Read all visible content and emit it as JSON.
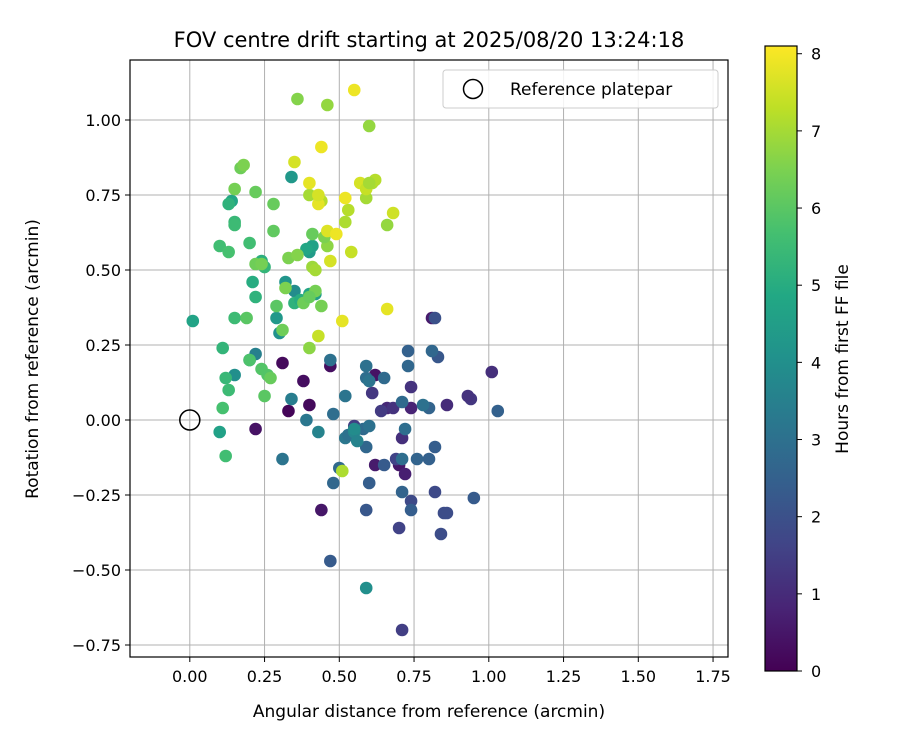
{
  "chart_data": {
    "type": "scatter",
    "title": "FOV centre drift starting at 2025/08/20 13:24:18",
    "xlabel": "Angular distance from reference (arcmin)",
    "ylabel": "Rotation from reference (arcmin)",
    "xlim": [
      -0.2,
      1.8
    ],
    "ylim": [
      -0.79,
      1.2
    ],
    "x_ticks": [
      "0.00",
      "0.25",
      "0.50",
      "0.75",
      "1.00",
      "1.25",
      "1.50",
      "1.75"
    ],
    "y_ticks": [
      "−0.75",
      "−0.50",
      "−0.25",
      "0.00",
      "0.25",
      "0.50",
      "0.75",
      "1.00"
    ],
    "grid": true,
    "legend": {
      "placement": "top-right",
      "entries": [
        "Reference platepar"
      ]
    },
    "reference_point": {
      "x": 0.0,
      "y": 0.0,
      "label": "Reference platepar"
    },
    "colorbar": {
      "label": "Hours from first FF file",
      "colormap": "viridis",
      "range": [
        0,
        8.1
      ],
      "ticks": [
        "0",
        "1",
        "2",
        "3",
        "4",
        "5",
        "6",
        "7",
        "8"
      ]
    },
    "points": [
      {
        "x": 0.31,
        "y": 0.19,
        "c": 0.2
      },
      {
        "x": 0.33,
        "y": 0.03,
        "c": 0.1
      },
      {
        "x": 0.38,
        "y": 0.13,
        "c": 0.3
      },
      {
        "x": 0.4,
        "y": 0.05,
        "c": 0.2
      },
      {
        "x": 0.22,
        "y": -0.03,
        "c": 0.4
      },
      {
        "x": 0.44,
        "y": -0.3,
        "c": 0.5
      },
      {
        "x": 0.47,
        "y": 0.18,
        "c": 0.3
      },
      {
        "x": 0.62,
        "y": 0.15,
        "c": 0.4
      },
      {
        "x": 0.62,
        "y": -0.15,
        "c": 0.6
      },
      {
        "x": 0.7,
        "y": -0.15,
        "c": 0.5
      },
      {
        "x": 0.72,
        "y": -0.18,
        "c": 0.7
      },
      {
        "x": 0.74,
        "y": 0.04,
        "c": 0.8
      },
      {
        "x": 0.81,
        "y": 0.34,
        "c": 0.6
      },
      {
        "x": 0.66,
        "y": 0.04,
        "c": 0.9
      },
      {
        "x": 0.86,
        "y": 0.05,
        "c": 1.0
      },
      {
        "x": 1.01,
        "y": 0.16,
        "c": 1.1
      },
      {
        "x": 0.94,
        "y": 0.07,
        "c": 1.3
      },
      {
        "x": 0.93,
        "y": 0.08,
        "c": 1.2
      },
      {
        "x": 0.74,
        "y": 0.11,
        "c": 1.2
      },
      {
        "x": 0.71,
        "y": -0.06,
        "c": 1.1
      },
      {
        "x": 0.61,
        "y": 0.09,
        "c": 1.3
      },
      {
        "x": 0.64,
        "y": 0.03,
        "c": 1.4
      },
      {
        "x": 0.68,
        "y": 0.04,
        "c": 1.2
      },
      {
        "x": 0.55,
        "y": -0.02,
        "c": 1.5
      },
      {
        "x": 0.71,
        "y": -0.7,
        "c": 1.5
      },
      {
        "x": 0.7,
        "y": -0.36,
        "c": 1.6
      },
      {
        "x": 0.69,
        "y": -0.13,
        "c": 1.6
      },
      {
        "x": 0.74,
        "y": -0.27,
        "c": 1.8
      },
      {
        "x": 0.82,
        "y": -0.24,
        "c": 1.8
      },
      {
        "x": 0.85,
        "y": -0.31,
        "c": 1.9
      },
      {
        "x": 0.84,
        "y": -0.38,
        "c": 1.9
      },
      {
        "x": 0.82,
        "y": 0.34,
        "c": 2.0
      },
      {
        "x": 0.83,
        "y": 0.21,
        "c": 2.2
      },
      {
        "x": 0.86,
        "y": -0.31,
        "c": 1.9
      },
      {
        "x": 0.95,
        "y": -0.26,
        "c": 2.3
      },
      {
        "x": 1.03,
        "y": 0.03,
        "c": 2.5
      },
      {
        "x": 0.8,
        "y": 0.04,
        "c": 2.6
      },
      {
        "x": 0.82,
        "y": -0.09,
        "c": 2.4
      },
      {
        "x": 0.8,
        "y": -0.13,
        "c": 2.5
      },
      {
        "x": 0.76,
        "y": -0.13,
        "c": 2.6
      },
      {
        "x": 0.73,
        "y": 0.23,
        "c": 2.5
      },
      {
        "x": 0.73,
        "y": 0.18,
        "c": 2.7
      },
      {
        "x": 0.81,
        "y": 0.23,
        "c": 2.7
      },
      {
        "x": 0.78,
        "y": 0.05,
        "c": 3.0
      },
      {
        "x": 0.71,
        "y": 0.06,
        "c": 2.8
      },
      {
        "x": 0.72,
        "y": -0.03,
        "c": 2.9
      },
      {
        "x": 0.71,
        "y": -0.13,
        "c": 2.9
      },
      {
        "x": 0.71,
        "y": -0.24,
        "c": 2.6
      },
      {
        "x": 0.74,
        "y": -0.3,
        "c": 2.4
      },
      {
        "x": 0.65,
        "y": -0.15,
        "c": 2.3
      },
      {
        "x": 0.6,
        "y": -0.21,
        "c": 2.4
      },
      {
        "x": 0.59,
        "y": -0.3,
        "c": 2.2
      },
      {
        "x": 0.65,
        "y": 0.14,
        "c": 2.8
      },
      {
        "x": 0.59,
        "y": 0.18,
        "c": 3.0
      },
      {
        "x": 0.59,
        "y": 0.14,
        "c": 2.9
      },
      {
        "x": 0.6,
        "y": 0.13,
        "c": 3.1
      },
      {
        "x": 0.58,
        "y": -0.03,
        "c": 2.8
      },
      {
        "x": 0.59,
        "y": -0.09,
        "c": 2.7
      },
      {
        "x": 0.6,
        "y": -0.02,
        "c": 3.0
      },
      {
        "x": 0.52,
        "y": 0.08,
        "c": 3.1
      },
      {
        "x": 0.47,
        "y": 0.2,
        "c": 3.0
      },
      {
        "x": 0.48,
        "y": 0.02,
        "c": 2.9
      },
      {
        "x": 0.5,
        "y": -0.16,
        "c": 2.8
      },
      {
        "x": 0.48,
        "y": -0.21,
        "c": 2.7
      },
      {
        "x": 0.52,
        "y": -0.06,
        "c": 3.2
      },
      {
        "x": 0.53,
        "y": -0.05,
        "c": 3.0
      },
      {
        "x": 0.47,
        "y": -0.47,
        "c": 2.3
      },
      {
        "x": 0.31,
        "y": -0.13,
        "c": 3.1
      },
      {
        "x": 0.39,
        "y": 0.0,
        "c": 3.2
      },
      {
        "x": 0.34,
        "y": 0.07,
        "c": 3.4
      },
      {
        "x": 0.43,
        "y": -0.04,
        "c": 3.6
      },
      {
        "x": 0.55,
        "y": -0.04,
        "c": 3.7
      },
      {
        "x": 0.55,
        "y": -0.03,
        "c": 3.9
      },
      {
        "x": 0.56,
        "y": -0.07,
        "c": 3.6
      },
      {
        "x": 0.59,
        "y": -0.56,
        "c": 4.0
      },
      {
        "x": 0.22,
        "y": 0.22,
        "c": 3.5
      },
      {
        "x": 0.2,
        "y": 0.2,
        "c": 3.8
      },
      {
        "x": 0.15,
        "y": 0.15,
        "c": 4.0
      },
      {
        "x": 0.35,
        "y": 0.43,
        "c": 3.9
      },
      {
        "x": 0.3,
        "y": 0.29,
        "c": 4.1
      },
      {
        "x": 0.29,
        "y": 0.34,
        "c": 4.3
      },
      {
        "x": 0.32,
        "y": 0.46,
        "c": 4.2
      },
      {
        "x": 0.34,
        "y": 0.81,
        "c": 4.3
      },
      {
        "x": 0.4,
        "y": 0.56,
        "c": 4.4
      },
      {
        "x": 0.41,
        "y": 0.58,
        "c": 4.6
      },
      {
        "x": 0.42,
        "y": 0.42,
        "c": 4.5
      },
      {
        "x": 0.4,
        "y": 0.42,
        "c": 4.7
      },
      {
        "x": 0.39,
        "y": 0.57,
        "c": 4.8
      },
      {
        "x": 0.01,
        "y": 0.33,
        "c": 4.7
      },
      {
        "x": 0.14,
        "y": 0.73,
        "c": 4.8
      },
      {
        "x": 0.1,
        "y": -0.04,
        "c": 4.6
      },
      {
        "x": 0.35,
        "y": 0.39,
        "c": 5.2
      },
      {
        "x": 0.37,
        "y": 0.4,
        "c": 5.0
      },
      {
        "x": 0.21,
        "y": 0.46,
        "c": 5.0
      },
      {
        "x": 0.22,
        "y": 0.41,
        "c": 5.2
      },
      {
        "x": 0.24,
        "y": 0.53,
        "c": 5.1
      },
      {
        "x": 0.25,
        "y": 0.51,
        "c": 5.3
      },
      {
        "x": 0.13,
        "y": 0.72,
        "c": 5.2
      },
      {
        "x": 0.15,
        "y": 0.66,
        "c": 5.4
      },
      {
        "x": 0.11,
        "y": 0.24,
        "c": 5.3
      },
      {
        "x": 0.12,
        "y": 0.14,
        "c": 5.4
      },
      {
        "x": 0.13,
        "y": 0.1,
        "c": 5.5
      },
      {
        "x": 0.11,
        "y": 0.04,
        "c": 5.7
      },
      {
        "x": 0.12,
        "y": -0.12,
        "c": 5.6
      },
      {
        "x": 0.15,
        "y": 0.34,
        "c": 5.5
      },
      {
        "x": 0.1,
        "y": 0.58,
        "c": 5.6
      },
      {
        "x": 0.13,
        "y": 0.56,
        "c": 5.7
      },
      {
        "x": 0.15,
        "y": 0.65,
        "c": 5.5
      },
      {
        "x": 0.2,
        "y": 0.59,
        "c": 5.6
      },
      {
        "x": 0.2,
        "y": 0.2,
        "c": 5.8
      },
      {
        "x": 0.24,
        "y": 0.17,
        "c": 5.9
      },
      {
        "x": 0.25,
        "y": 0.08,
        "c": 6.0
      },
      {
        "x": 0.26,
        "y": 0.15,
        "c": 5.9
      },
      {
        "x": 0.27,
        "y": 0.14,
        "c": 6.2
      },
      {
        "x": 0.19,
        "y": 0.34,
        "c": 6.0
      },
      {
        "x": 0.28,
        "y": 0.63,
        "c": 6.1
      },
      {
        "x": 0.28,
        "y": 0.72,
        "c": 6.2
      },
      {
        "x": 0.29,
        "y": 0.38,
        "c": 6.0
      },
      {
        "x": 0.31,
        "y": 0.3,
        "c": 6.3
      },
      {
        "x": 0.22,
        "y": 0.76,
        "c": 6.2
      },
      {
        "x": 0.17,
        "y": 0.84,
        "c": 6.3
      },
      {
        "x": 0.15,
        "y": 0.77,
        "c": 6.4
      },
      {
        "x": 0.18,
        "y": 0.85,
        "c": 6.5
      },
      {
        "x": 0.22,
        "y": 0.52,
        "c": 6.3
      },
      {
        "x": 0.24,
        "y": 0.52,
        "c": 6.4
      },
      {
        "x": 0.33,
        "y": 0.54,
        "c": 6.5
      },
      {
        "x": 0.36,
        "y": 0.55,
        "c": 6.6
      },
      {
        "x": 0.32,
        "y": 0.44,
        "c": 6.5
      },
      {
        "x": 0.38,
        "y": 0.39,
        "c": 6.3
      },
      {
        "x": 0.42,
        "y": 0.43,
        "c": 6.4
      },
      {
        "x": 0.41,
        "y": 0.62,
        "c": 6.2
      },
      {
        "x": 0.4,
        "y": 0.41,
        "c": 6.2
      },
      {
        "x": 0.44,
        "y": 0.38,
        "c": 6.4
      },
      {
        "x": 0.46,
        "y": 0.58,
        "c": 6.7
      },
      {
        "x": 0.45,
        "y": 0.61,
        "c": 6.5
      },
      {
        "x": 0.36,
        "y": 1.07,
        "c": 6.6
      },
      {
        "x": 0.46,
        "y": 1.05,
        "c": 6.8
      },
      {
        "x": 0.4,
        "y": 0.24,
        "c": 6.7
      },
      {
        "x": 0.41,
        "y": 0.51,
        "c": 6.9
      },
      {
        "x": 0.42,
        "y": 0.5,
        "c": 7.0
      },
      {
        "x": 0.4,
        "y": 0.75,
        "c": 7.0
      },
      {
        "x": 0.44,
        "y": 0.73,
        "c": 7.2
      },
      {
        "x": 0.43,
        "y": 0.28,
        "c": 7.4
      },
      {
        "x": 0.52,
        "y": 0.66,
        "c": 7.1
      },
      {
        "x": 0.53,
        "y": 0.7,
        "c": 7.2
      },
      {
        "x": 0.54,
        "y": 0.56,
        "c": 7.4
      },
      {
        "x": 0.59,
        "y": 0.74,
        "c": 7.0
      },
      {
        "x": 0.6,
        "y": 0.98,
        "c": 6.8
      },
      {
        "x": 0.61,
        "y": 0.79,
        "c": 7.1
      },
      {
        "x": 0.62,
        "y": 0.8,
        "c": 7.2
      },
      {
        "x": 0.66,
        "y": 0.65,
        "c": 6.8
      },
      {
        "x": 0.47,
        "y": 0.53,
        "c": 7.6
      },
      {
        "x": 0.46,
        "y": 0.63,
        "c": 7.7
      },
      {
        "x": 0.43,
        "y": 0.72,
        "c": 7.8
      },
      {
        "x": 0.44,
        "y": 0.91,
        "c": 7.9
      },
      {
        "x": 0.43,
        "y": 0.75,
        "c": 7.6
      },
      {
        "x": 0.35,
        "y": 0.86,
        "c": 7.6
      },
      {
        "x": 0.4,
        "y": 0.79,
        "c": 7.8
      },
      {
        "x": 0.49,
        "y": 0.62,
        "c": 7.9
      },
      {
        "x": 0.51,
        "y": 0.33,
        "c": 7.8
      },
      {
        "x": 0.52,
        "y": 0.74,
        "c": 7.9
      },
      {
        "x": 0.57,
        "y": 0.79,
        "c": 7.6
      },
      {
        "x": 0.55,
        "y": 1.1,
        "c": 7.9
      },
      {
        "x": 0.59,
        "y": 0.77,
        "c": 7.4
      },
      {
        "x": 0.66,
        "y": 0.37,
        "c": 7.8
      },
      {
        "x": 0.68,
        "y": 0.69,
        "c": 7.5
      },
      {
        "x": 0.51,
        "y": -0.17,
        "c": 7.1
      },
      {
        "x": 0.6,
        "y": 0.79,
        "c": 7.0
      }
    ]
  }
}
